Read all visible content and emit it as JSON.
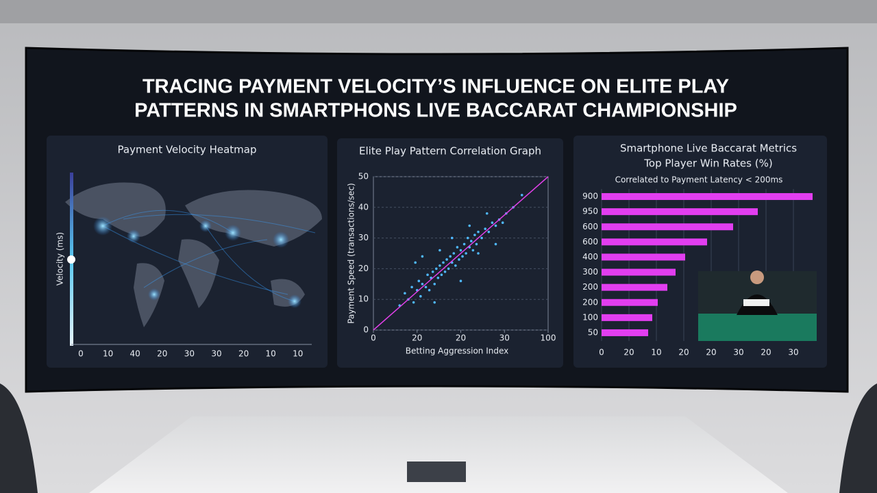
{
  "title_lines": [
    "TRACING PAYMENT VELOCITY’S INFLUENCE ON ELITE PLAY",
    "PATTERNS IN SMARTPHONS LIVE BACCARAT CHAMPIONSHIP"
  ],
  "chart_data": [
    {
      "type": "heatmap",
      "title": "Payment Velocity Heatmap",
      "y_label": "Velocity (ms)",
      "categories": [
        "0",
        "10",
        "40",
        "20",
        "30",
        "30",
        "20",
        "10",
        "10"
      ]
    },
    {
      "type": "scatter",
      "title": "Elite Play Pattern Correlation Graph",
      "x_label": "Betting Aggression Index",
      "y_label": "Payment Speed (transactions/sec)",
      "color": "#4fb8ff",
      "trend_color": "#e040e8",
      "xlim": [
        0,
        100
      ],
      "ylim": [
        0,
        50
      ],
      "xticks": [
        0,
        {
          "value": 25,
          "label": "20"
        },
        {
          "value": 50,
          "label": "20"
        },
        {
          "value": 75,
          "label": "30"
        },
        100
      ],
      "yticks": [
        0,
        10,
        20,
        30,
        40,
        50
      ],
      "grid": true,
      "trend": {
        "x": [
          0,
          100
        ],
        "y": [
          0,
          50
        ]
      },
      "x": [
        15,
        18,
        20,
        22,
        23,
        25,
        26,
        27,
        28,
        30,
        31,
        32,
        33,
        34,
        35,
        36,
        37,
        38,
        39,
        40,
        41,
        42,
        43,
        44,
        45,
        46,
        47,
        48,
        49,
        50,
        51,
        52,
        53,
        54,
        55,
        56,
        57,
        58,
        59,
        60,
        62,
        64,
        66,
        68,
        70,
        72,
        74,
        76,
        80,
        85,
        24,
        35,
        45,
        60,
        70,
        28,
        55,
        65,
        38,
        50
      ],
      "values": [
        8,
        12,
        10,
        14,
        9,
        13,
        16,
        11,
        15,
        14,
        18,
        13,
        17,
        19,
        15,
        20,
        17,
        21,
        18,
        22,
        19,
        23,
        20,
        24,
        22,
        25,
        21,
        27,
        23,
        26,
        24,
        28,
        25,
        30,
        27,
        29,
        26,
        31,
        28,
        32,
        30,
        33,
        32,
        35,
        34,
        36,
        35,
        38,
        40,
        44,
        22,
        9,
        30,
        25,
        28,
        24,
        34,
        38,
        26,
        16
      ]
    },
    {
      "type": "hbar",
      "title_lines": [
        "Smartphone Live Baccarat Metrics",
        "Top Player Win Rates (%)"
      ],
      "subtitle": "Correlated to Payment Latency < 200ms",
      "color": "#e23ef0",
      "categories": [
        900,
        950,
        600,
        600,
        400,
        300,
        200,
        200,
        100,
        50
      ],
      "values": [
        77,
        57,
        48,
        38.5,
        30.5,
        27,
        24,
        20.5,
        18.5,
        17
      ],
      "xlim": [
        0,
        78
      ],
      "xticks": [
        0,
        {
          "value": 10,
          "label": "20"
        },
        {
          "value": 20,
          "label": "10"
        },
        {
          "value": 30,
          "label": "20"
        },
        {
          "value": 40,
          "label": "20"
        },
        {
          "value": 50,
          "label": "30"
        },
        {
          "value": 60,
          "label": "20"
        },
        {
          "value": 70,
          "label": "30"
        }
      ],
      "grid": true
    }
  ]
}
